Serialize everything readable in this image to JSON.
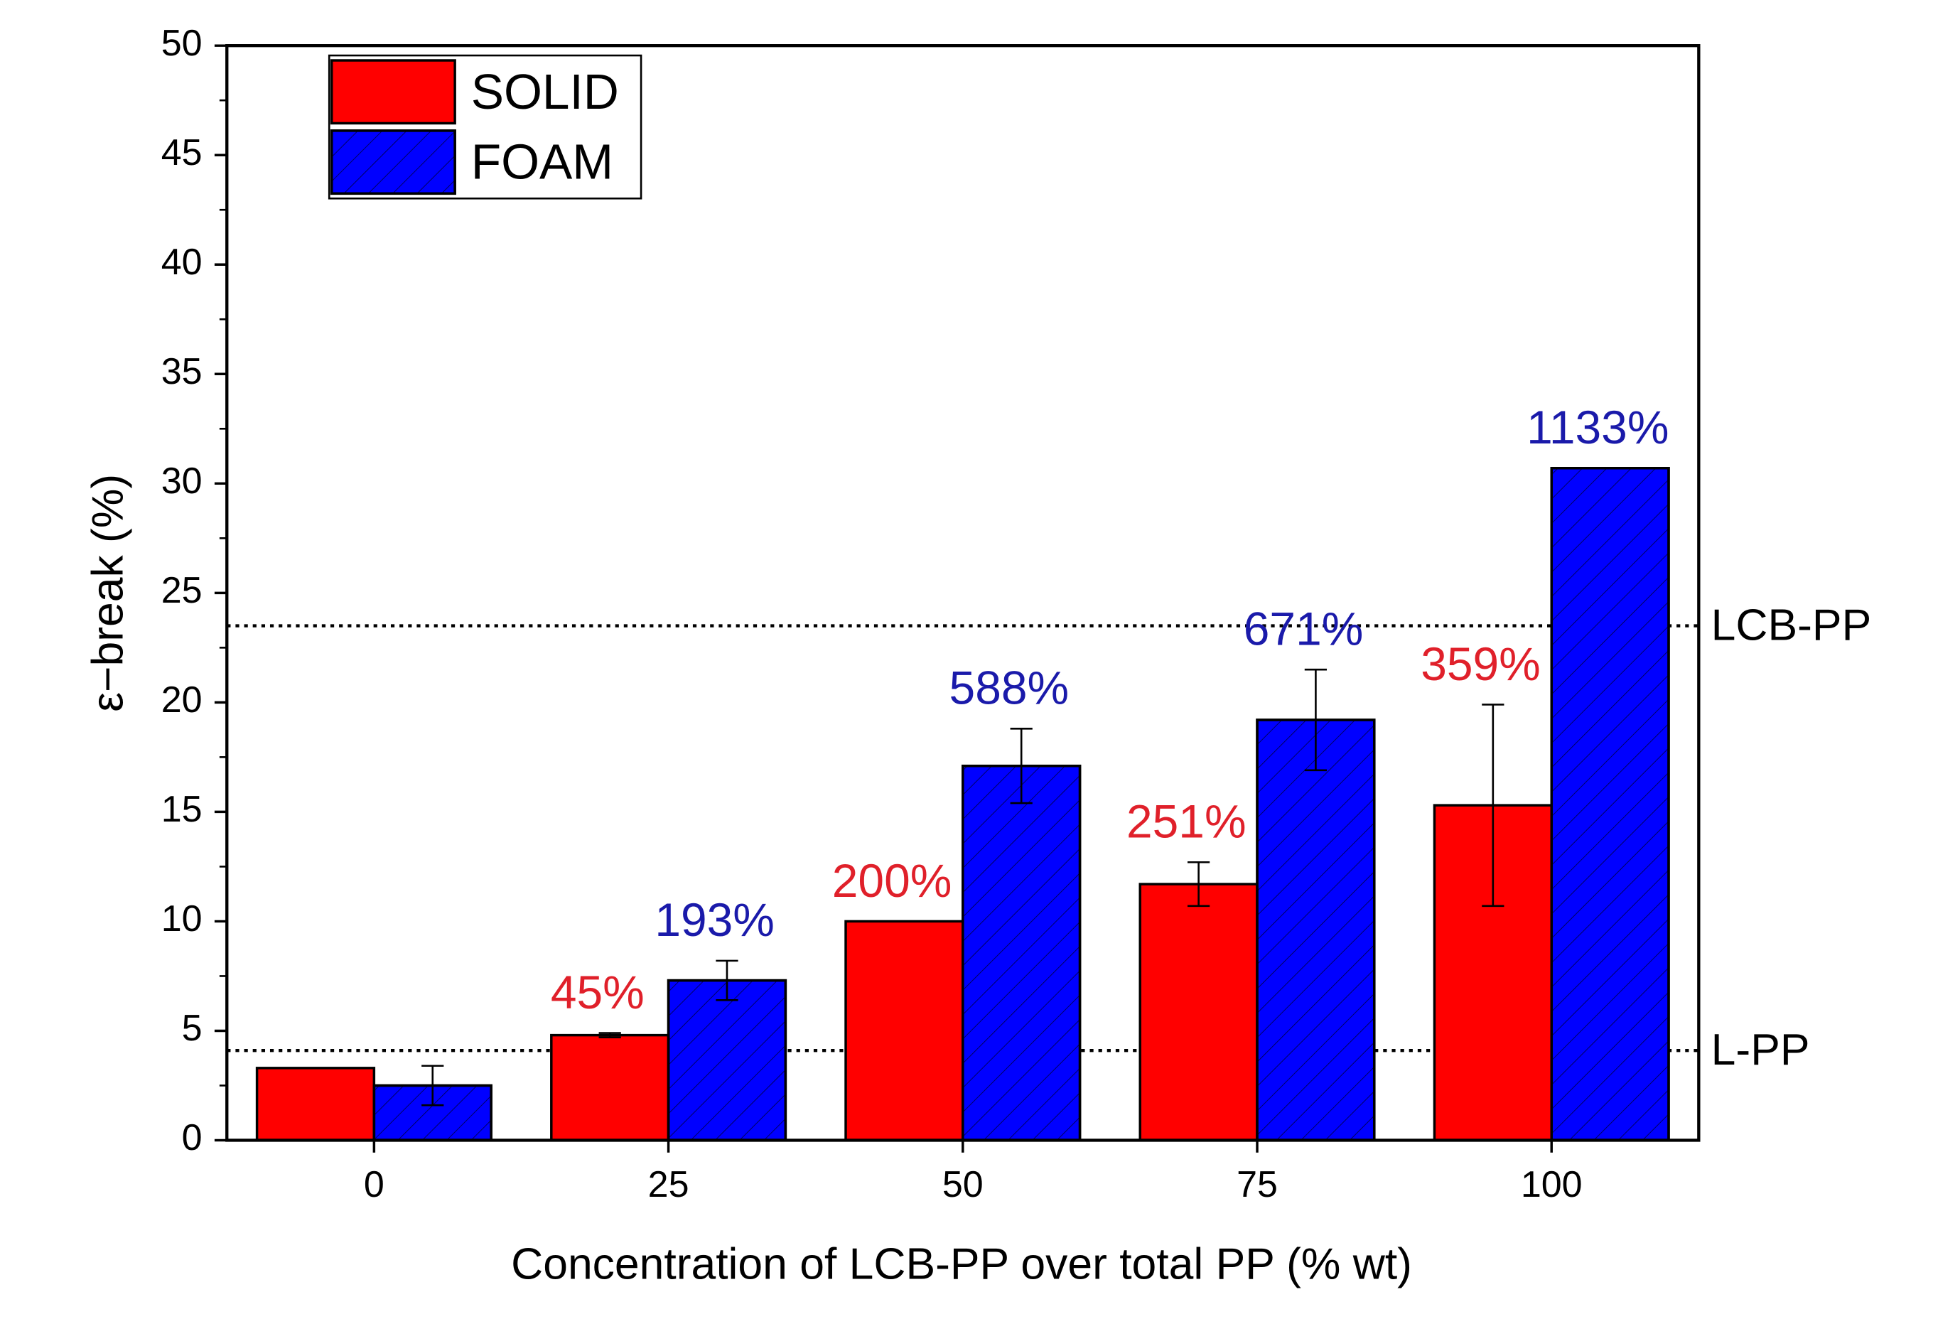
{
  "chart_data": {
    "type": "bar",
    "x_label": "Concentration of LCB-PP over total PP (% wt)",
    "y_label": "ε−break (%)",
    "categories": [
      "0",
      "25",
      "50",
      "75",
      "100"
    ],
    "series": [
      {
        "name": "SOLID",
        "color": "#ff0000",
        "hatch": false,
        "values": [
          3.3,
          4.8,
          10.0,
          11.7,
          15.3
        ],
        "errors": [
          null,
          0.1,
          null,
          1.0,
          4.6
        ],
        "annotations": [
          null,
          "45%",
          "200%",
          "251%",
          "359%"
        ],
        "annotation_color": "#e0202a"
      },
      {
        "name": "FOAM",
        "color": "#0000ff",
        "hatch": true,
        "values": [
          2.5,
          7.3,
          17.1,
          19.2,
          30.7
        ],
        "errors": [
          0.9,
          0.9,
          1.7,
          2.3,
          null
        ],
        "annotations": [
          null,
          "193%",
          "588%",
          "671%",
          "1133%"
        ],
        "annotation_color": "#1a1aaa"
      }
    ],
    "reference_lines": [
      {
        "label": "LCB-PP",
        "value": 23.5
      },
      {
        "label": "L-PP",
        "value": 4.1
      }
    ],
    "ylim": [
      0,
      50
    ],
    "yticks": [
      0,
      5,
      10,
      15,
      20,
      25,
      30,
      35,
      40,
      45,
      50
    ],
    "minor_ticks": true,
    "legend": "upper left"
  }
}
